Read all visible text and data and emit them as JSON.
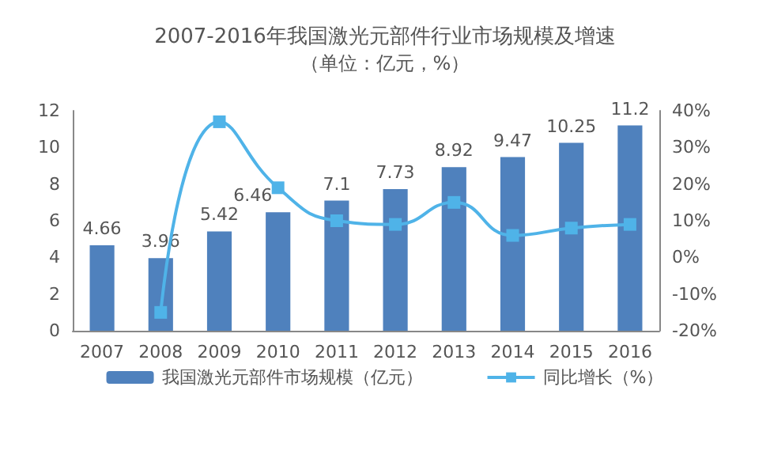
{
  "chart_data": {
    "type": "bar",
    "title": "2007-2016年我国激光元部件行业市场规模及增速",
    "subtitle": "（单位：亿元，%）",
    "categories": [
      "2007",
      "2008",
      "2009",
      "2010",
      "2011",
      "2012",
      "2013",
      "2014",
      "2015",
      "2016"
    ],
    "series": [
      {
        "name": "我国激光元部件市场规模（亿元）",
        "type": "bar",
        "color": "#4f81bd",
        "values": [
          4.66,
          3.96,
          5.42,
          6.46,
          7.1,
          7.73,
          8.92,
          9.47,
          10.25,
          11.2
        ],
        "data_labels": true
      },
      {
        "name": "同比增长（%）",
        "type": "line",
        "axis": "y2",
        "color": "#4fb3e8",
        "marker": "square",
        "values": [
          null,
          -15,
          37,
          19,
          10,
          9,
          15,
          6,
          8,
          9
        ]
      }
    ],
    "ylim": [
      0,
      12
    ],
    "yticks": [
      0,
      2,
      4,
      6,
      8,
      10,
      12
    ],
    "y2lim": [
      -20,
      40
    ],
    "y2ticks": [
      {
        "value": -20,
        "label": "-20%"
      },
      {
        "value": -10,
        "label": "-10%"
      },
      {
        "value": 0,
        "label": "0%"
      },
      {
        "value": 10,
        "label": "10%"
      },
      {
        "value": 20,
        "label": "20%"
      },
      {
        "value": 30,
        "label": "30%"
      },
      {
        "value": 40,
        "label": "40%"
      }
    ],
    "grid": false,
    "legend": "bottom"
  }
}
